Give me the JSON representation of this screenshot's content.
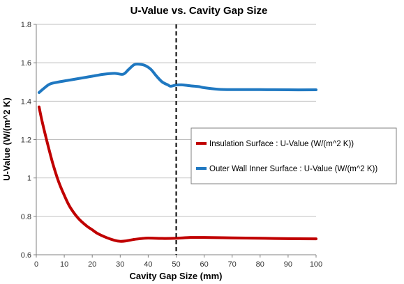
{
  "chart_data": {
    "type": "line",
    "title": "U-Value vs. Cavity Gap Size",
    "xlabel": "Cavity Gap Size (mm)",
    "ylabel": "U-Value (W/(m^2 K)",
    "xlim": [
      0,
      100
    ],
    "ylim": [
      0.6,
      1.8
    ],
    "x_ticks": [
      0,
      10,
      20,
      30,
      40,
      50,
      60,
      70,
      80,
      90,
      100
    ],
    "y_ticks": [
      "0.6",
      "0.8",
      "1",
      "1.2",
      "1.4",
      "1.6",
      "1.8"
    ],
    "grid": "horizontal",
    "reference_line": {
      "x": 50,
      "style": "dashed",
      "color": "#000000"
    },
    "legend": {
      "placement": "right"
    },
    "series": [
      {
        "name": "Insulation Surface : U-Value (W/(m^2  K))",
        "color": "#c00000",
        "points": [
          [
            1,
            1.37
          ],
          [
            2,
            1.3
          ],
          [
            4,
            1.18
          ],
          [
            6,
            1.07
          ],
          [
            8,
            0.98
          ],
          [
            10,
            0.91
          ],
          [
            12,
            0.85
          ],
          [
            15,
            0.79
          ],
          [
            18,
            0.75
          ],
          [
            20,
            0.73
          ],
          [
            22,
            0.71
          ],
          [
            25,
            0.69
          ],
          [
            28,
            0.675
          ],
          [
            30,
            0.67
          ],
          [
            32,
            0.672
          ],
          [
            35,
            0.68
          ],
          [
            38,
            0.685
          ],
          [
            40,
            0.687
          ],
          [
            45,
            0.685
          ],
          [
            50,
            0.686
          ],
          [
            55,
            0.69
          ],
          [
            60,
            0.69
          ],
          [
            70,
            0.688
          ],
          [
            80,
            0.686
          ],
          [
            90,
            0.684
          ],
          [
            100,
            0.683
          ]
        ]
      },
      {
        "name": "Outer Wall Inner Surface : U-Value (W/(m^2  K))",
        "color": "#1f78c1",
        "points": [
          [
            1,
            1.445
          ],
          [
            3,
            1.47
          ],
          [
            5,
            1.49
          ],
          [
            8,
            1.5
          ],
          [
            12,
            1.51
          ],
          [
            16,
            1.52
          ],
          [
            20,
            1.53
          ],
          [
            24,
            1.54
          ],
          [
            28,
            1.545
          ],
          [
            31,
            1.54
          ],
          [
            33,
            1.565
          ],
          [
            35,
            1.59
          ],
          [
            37,
            1.592
          ],
          [
            39,
            1.585
          ],
          [
            41,
            1.565
          ],
          [
            43,
            1.53
          ],
          [
            45,
            1.5
          ],
          [
            47,
            1.485
          ],
          [
            48,
            1.478
          ],
          [
            50,
            1.484
          ],
          [
            52,
            1.485
          ],
          [
            55,
            1.48
          ],
          [
            58,
            1.476
          ],
          [
            60,
            1.47
          ],
          [
            65,
            1.462
          ],
          [
            70,
            1.46
          ],
          [
            80,
            1.46
          ],
          [
            90,
            1.459
          ],
          [
            100,
            1.459
          ]
        ]
      }
    ]
  }
}
